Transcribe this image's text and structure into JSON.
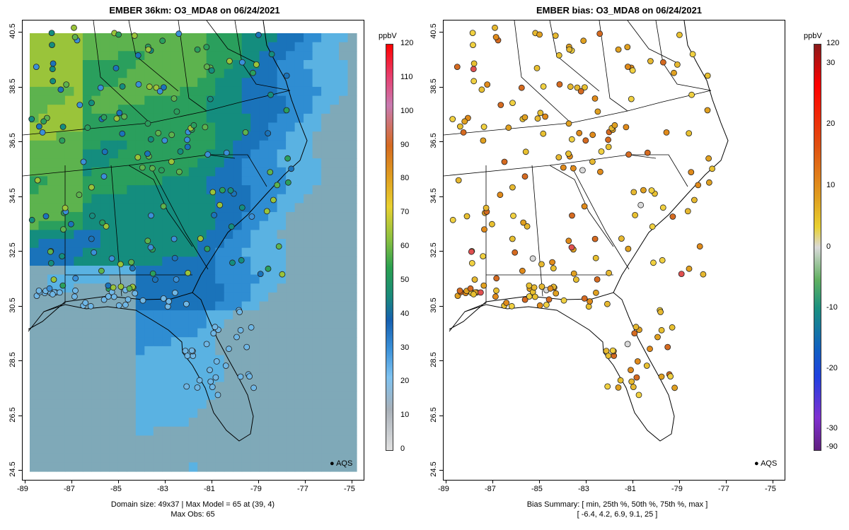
{
  "left_panel": {
    "title": "EMBER 36km: O3_MDA8 on 06/24/2021",
    "footer_line1": "Domain size: 49x37 | Max Model = 65 at (39, 4)",
    "footer_line2": "Max Obs: 65",
    "legend": "AQS",
    "colorbar_title": "ppbV",
    "colorbar_ticks": [
      "120",
      "110",
      "100",
      "90",
      "80",
      "70",
      "60",
      "50",
      "40",
      "30",
      "20",
      "10",
      "0"
    ]
  },
  "right_panel": {
    "title": "EMBER bias: O3_MDA8 on 06/24/2021",
    "footer_line1": "Bias Summary: [ min, 25th %, 50th %, 75th %, max ]",
    "footer_line2": "[ -6.4,   4.2,   6.9,   9.1,   25 ]",
    "legend": "AQS",
    "colorbar_title": "ppbV",
    "colorbar_ticks": [
      "120",
      "30",
      "20",
      "10",
      "0",
      "-10",
      "-20",
      "-30",
      "-90"
    ]
  },
  "axes": {
    "x_ticks": [
      "-89",
      "-87",
      "-85",
      "-83",
      "-81",
      "-79",
      "-77",
      "-75"
    ],
    "y_ticks": [
      "40.5",
      "38.5",
      "36.5",
      "34.5",
      "32.5",
      "30.5",
      "28.5",
      "26.5",
      "24.5"
    ]
  },
  "colors": {
    "ozone_high": "#ff0000",
    "ozone_mid": "#1fa36a",
    "ozone_low": "#5ab4e6",
    "bias_positive": "#e08a1a",
    "bias_zero": "#d9d9d9"
  }
}
